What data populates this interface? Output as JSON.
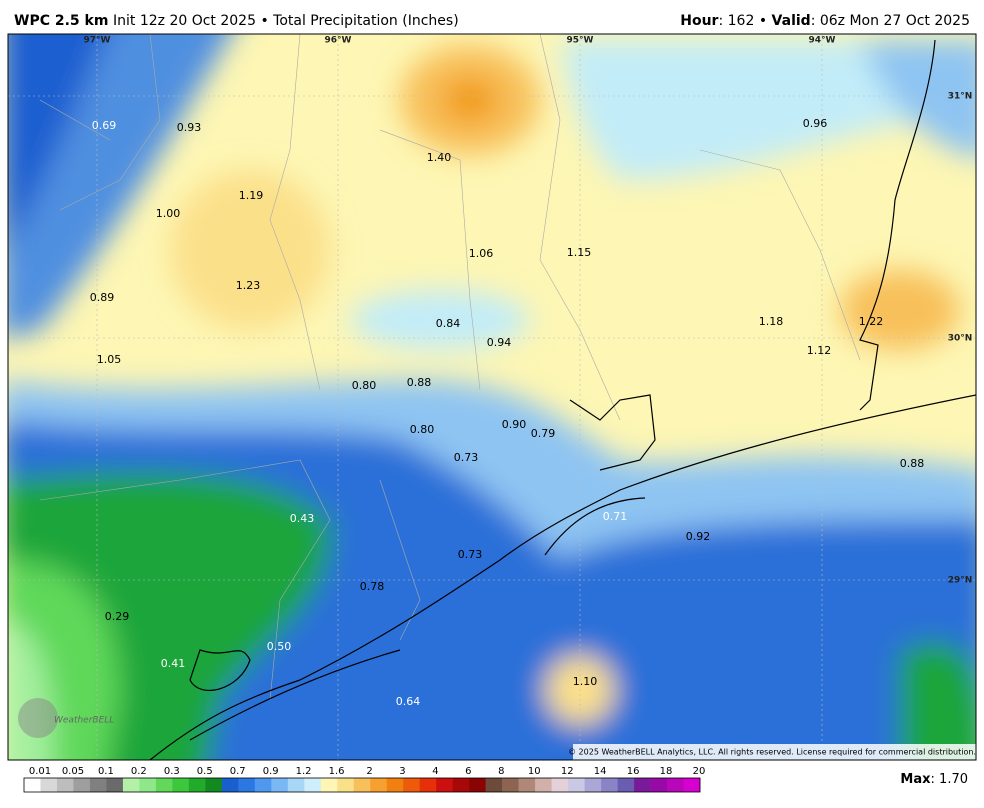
{
  "header": {
    "model": "WPC 2.5 km",
    "run": "Init 12z 20 Oct 2025 • Total Precipitation (Inches)",
    "hour_label": "Hour",
    "hour": "162",
    "valid_label": "Valid",
    "valid": "06z Mon 27 Oct 2025"
  },
  "map": {
    "longitudes": [
      "97°W",
      "96°W",
      "95°W",
      "94°W"
    ],
    "latitudes": [
      "31°N",
      "30°N",
      "29°N"
    ],
    "values": [
      "0.69",
      "0.93",
      "1.40",
      "0.96",
      "1.19",
      "1.00",
      "1.06",
      "1.15",
      "0.89",
      "1.23",
      "0.84",
      "0.94",
      "1.18",
      "1.22",
      "1.12",
      "1.05",
      "0.80",
      "0.88",
      "0.90",
      "0.79",
      "0.80",
      "0.73",
      "0.88",
      "0.43",
      "0.71",
      "0.92",
      "0.73",
      "0.78",
      "0.29",
      "0.50",
      "0.41",
      "1.10",
      "0.64"
    ],
    "copyright": "© 2025 WeatherBELL Analytics, LLC. All rights reserved. License required for commercial distribution.",
    "logo": "WeatherBELL"
  },
  "colorbar": {
    "labels": [
      "0.01",
      "0.05",
      "0.1",
      "0.2",
      "0.3",
      "0.5",
      "0.7",
      "0.9",
      "1.2",
      "1.6",
      "2",
      "3",
      "4",
      "6",
      "8",
      "10",
      "12",
      "14",
      "16",
      "18",
      "20"
    ],
    "max_label": "Max",
    "max": "1.70"
  }
}
